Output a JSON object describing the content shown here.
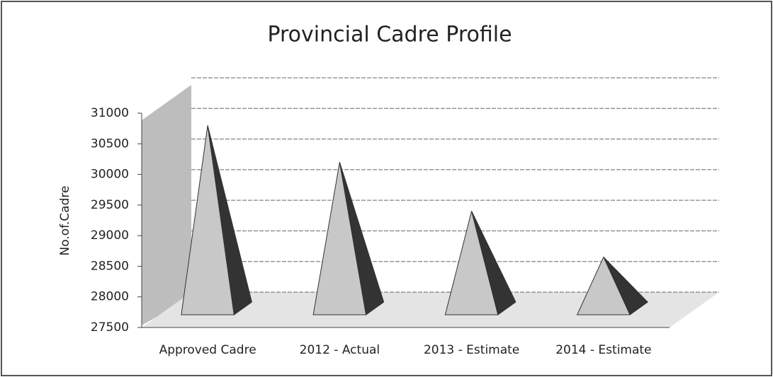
{
  "chart_data": {
    "type": "pyramid",
    "title": "Provincial Cadre Profile",
    "y_label": "No.of.Cadre",
    "categories": [
      "Approved Cadre",
      "2012 -  Actual",
      "2013 - Estimate",
      "2014 -  Estimate"
    ],
    "values": [
      30800,
      30200,
      29400,
      28650
    ],
    "color": "#c8c8c8",
    "ylim": [
      27500,
      31000
    ],
    "yticks": [
      27500,
      28000,
      28500,
      29000,
      29500,
      30000,
      30500,
      31000
    ],
    "grid": true
  }
}
